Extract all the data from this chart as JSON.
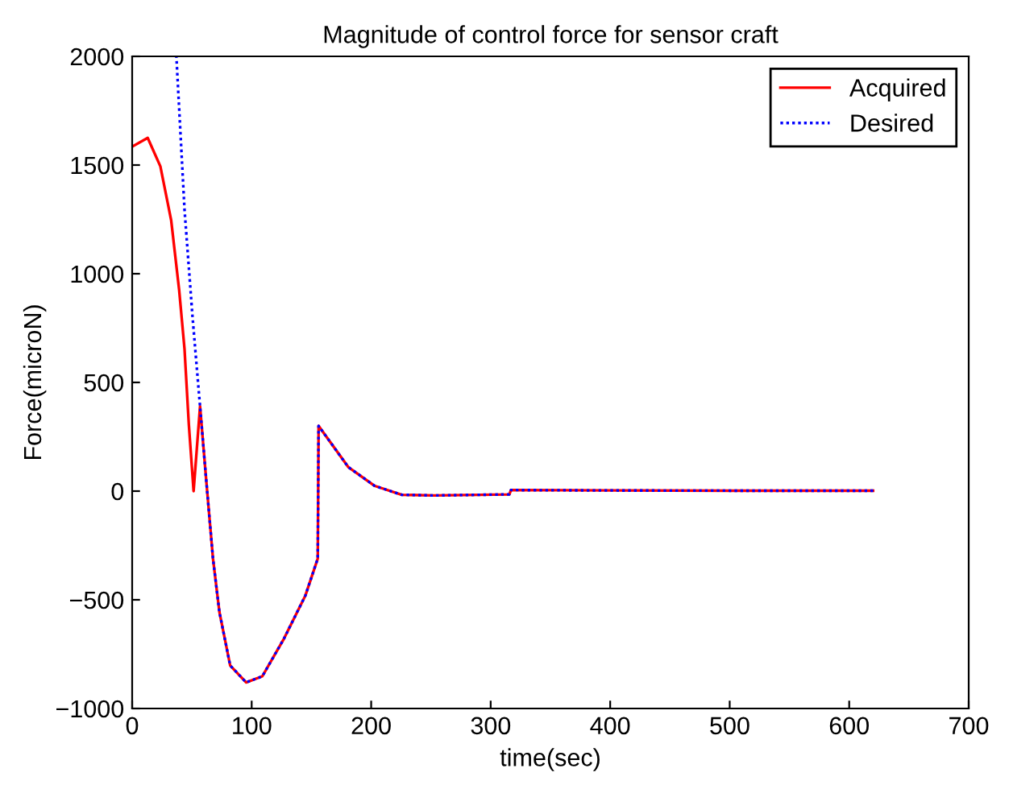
{
  "chart_data": {
    "type": "line",
    "title": "Magnitude of control force for sensor craft",
    "xlabel": "time(sec)",
    "ylabel": "Force(microN)",
    "xlim": [
      0,
      700
    ],
    "xticks": [
      0,
      100,
      200,
      300,
      400,
      500,
      600,
      700
    ],
    "ylim": [
      -1000,
      2000
    ],
    "yticks": [
      -1000,
      -500,
      0,
      500,
      1000,
      1500,
      2000
    ],
    "grid": false,
    "legend": "top right",
    "series": [
      {
        "name": "Acquired",
        "color": "#ff0000",
        "line_style": "solid",
        "x": [
          0,
          13,
          23.6,
          32.6,
          39.3,
          43.8,
          47.4,
          51.4,
          56.8,
          61.8,
          67.6,
          73,
          82,
          95.4,
          108.9,
          127,
          144.9,
          155.3,
          156,
          180.8,
          203,
          225.7,
          252.7,
          315.6,
          317,
          400,
          500,
          620
        ],
        "values": [
          1585,
          1625,
          1494,
          1247,
          926,
          654,
          308,
          0,
          390,
          61,
          -309,
          -556,
          -802,
          -880,
          -852,
          -679,
          -481,
          -310,
          300,
          111,
          24,
          -17,
          -20,
          -15,
          5,
          3,
          2,
          2
        ]
      },
      {
        "name": "Desired",
        "color": "#0000ff",
        "line_style": "dotted",
        "x": [
          37,
          43.8,
          50.5,
          56.8,
          61.8,
          67.6,
          73,
          82,
          95.4,
          108.9,
          127,
          144.9,
          155.3,
          156,
          180.8,
          203,
          225.7,
          252.7,
          315.6,
          317,
          400,
          500,
          620
        ],
        "values": [
          2000,
          1296,
          802,
          390,
          61,
          -309,
          -556,
          -802,
          -880,
          -852,
          -679,
          -481,
          -310,
          300,
          111,
          24,
          -17,
          -20,
          -15,
          5,
          3,
          2,
          2
        ]
      }
    ]
  }
}
